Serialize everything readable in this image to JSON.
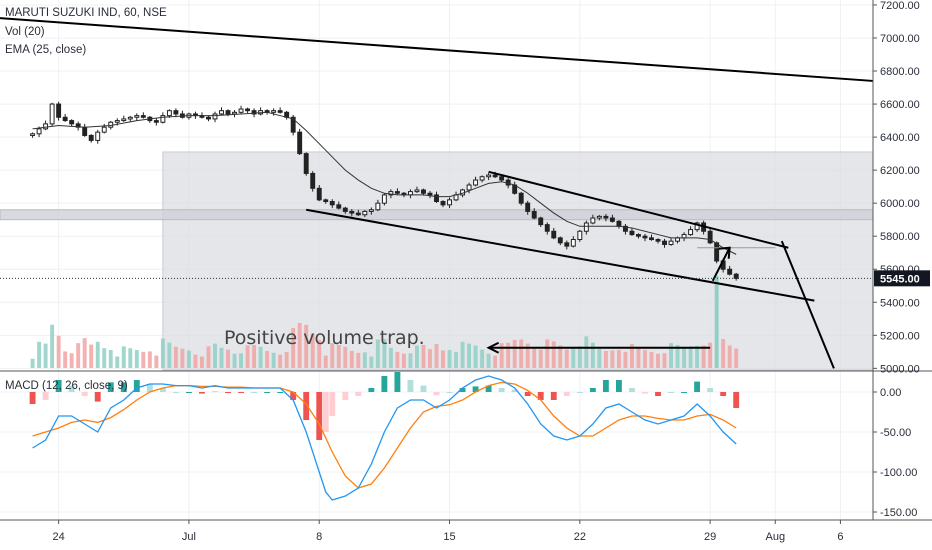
{
  "legend": {
    "symbol": "MARUTI SUZUKI IND, 60, NSE",
    "volume": "Vol (20)",
    "ema": "EMA (25, close)",
    "macd": "MACD (12, 26, close, 9)"
  },
  "annotation": {
    "text": "Positive volume trap."
  },
  "colors": {
    "up": "#26a69a",
    "down": "#ef5350",
    "vol_up": "#8fcfc4",
    "vol_down": "#f1a3a3",
    "ema": "#333333",
    "macd_line": "#2196f3",
    "signal_line": "#ff7f0e",
    "zone": "#dadbe0",
    "price_tag_bg": "#131722"
  },
  "chart_data": [
    {
      "type": "candlestick",
      "name": "price",
      "yticks": [
        5000,
        5200,
        5400,
        5600,
        5800,
        6000,
        6200,
        6400,
        6600,
        6800,
        7000,
        7200
      ],
      "ytick_labels": [
        "5000.00",
        "5200.00",
        "5400.00",
        "5600.00",
        "5800.00",
        "6000.00",
        "6200.00",
        "6400.00",
        "6600.00",
        "6800.00",
        "7000.00",
        "7200.00"
      ],
      "ylim": [
        4990,
        7230
      ],
      "last_price": 5545,
      "last_price_label": "5545.00",
      "xticks": [
        {
          "label": "24",
          "x": 2
        },
        {
          "label": "Jul",
          "x": 12
        },
        {
          "label": "8",
          "x": 22
        },
        {
          "label": "15",
          "x": 32
        },
        {
          "label": "22",
          "x": 42
        },
        {
          "label": "29",
          "x": 52
        },
        {
          "label": "Aug",
          "x": 57
        },
        {
          "label": "6",
          "x": 62
        }
      ],
      "xlim": [
        -2.5,
        64.5
      ],
      "series": [
        {
          "points": [
            [
              0,
              6420
            ],
            [
              0.5,
              6450
            ],
            [
              1,
              6480
            ],
            [
              1.5,
              6600
            ],
            [
              2,
              6520
            ],
            [
              2.5,
              6500
            ],
            [
              3,
              6480
            ],
            [
              3.5,
              6460
            ],
            [
              4,
              6410
            ],
            [
              4.5,
              6380
            ],
            [
              5,
              6430
            ],
            [
              5.5,
              6460
            ],
            [
              6,
              6490
            ],
            [
              6.5,
              6500
            ],
            [
              7,
              6510
            ],
            [
              7.5,
              6520
            ],
            [
              8,
              6530
            ],
            [
              8.5,
              6520
            ],
            [
              9,
              6500
            ],
            [
              9.5,
              6490
            ],
            [
              10,
              6530
            ],
            [
              10.5,
              6560
            ],
            [
              11,
              6540
            ],
            [
              11.5,
              6520
            ],
            [
              12,
              6540
            ],
            [
              12.5,
              6530
            ],
            [
              13,
              6520
            ],
            [
              13.5,
              6510
            ],
            [
              14,
              6540
            ],
            [
              14.5,
              6560
            ],
            [
              15,
              6540
            ],
            [
              15.5,
              6550
            ],
            [
              16,
              6570
            ],
            [
              16.5,
              6560
            ],
            [
              17,
              6540
            ],
            [
              17.5,
              6560
            ],
            [
              18,
              6550
            ],
            [
              18.5,
              6560
            ],
            [
              19,
              6550
            ],
            [
              19.5,
              6520
            ],
            [
              20,
              6430
            ],
            [
              20.5,
              6300
            ],
            [
              21,
              6180
            ],
            [
              21.5,
              6090
            ],
            [
              22,
              6020
            ],
            [
              22.5,
              6010
            ],
            [
              23,
              5990
            ],
            [
              23.5,
              5970
            ],
            [
              24,
              5950
            ],
            [
              24.5,
              5940
            ],
            [
              25,
              5930
            ],
            [
              25.5,
              5950
            ],
            [
              26,
              5960
            ],
            [
              26.5,
              6000
            ],
            [
              27,
              6050
            ],
            [
              27.5,
              6070
            ],
            [
              28,
              6060
            ],
            [
              28.5,
              6050
            ],
            [
              29,
              6070
            ],
            [
              29.5,
              6080
            ],
            [
              30,
              6060
            ],
            [
              30.5,
              6050
            ],
            [
              31,
              6010
            ],
            [
              31.5,
              5990
            ],
            [
              32,
              6020
            ],
            [
              32.5,
              6050
            ],
            [
              33,
              6080
            ],
            [
              33.5,
              6110
            ],
            [
              34,
              6140
            ],
            [
              34.5,
              6160
            ],
            [
              35,
              6170
            ],
            [
              35.5,
              6160
            ],
            [
              36,
              6140
            ],
            [
              36.5,
              6110
            ],
            [
              37,
              6060
            ],
            [
              37.5,
              6000
            ],
            [
              38,
              5950
            ],
            [
              38.5,
              5910
            ],
            [
              39,
              5870
            ],
            [
              39.5,
              5830
            ],
            [
              40,
              5790
            ],
            [
              40.5,
              5760
            ],
            [
              41,
              5740
            ],
            [
              41.5,
              5780
            ],
            [
              42,
              5830
            ],
            [
              42.5,
              5880
            ],
            [
              43,
              5910
            ],
            [
              43.5,
              5920
            ],
            [
              44,
              5910
            ],
            [
              44.5,
              5890
            ],
            [
              45,
              5860
            ],
            [
              45.5,
              5830
            ],
            [
              46,
              5810
            ],
            [
              46.5,
              5800
            ],
            [
              47,
              5790
            ],
            [
              47.5,
              5780
            ],
            [
              48,
              5770
            ],
            [
              48.5,
              5750
            ],
            [
              49,
              5770
            ],
            [
              49.5,
              5790
            ],
            [
              50,
              5810
            ],
            [
              50.5,
              5840
            ],
            [
              51,
              5880
            ],
            [
              51.5,
              5830
            ],
            [
              52,
              5760
            ],
            [
              52.5,
              5650
            ],
            [
              53,
              5600
            ],
            [
              53.5,
              5570
            ],
            [
              54,
              5545
            ]
          ]
        }
      ],
      "ema": [
        [
          0,
          6450
        ],
        [
          2,
          6470
        ],
        [
          4,
          6460
        ],
        [
          6,
          6470
        ],
        [
          8,
          6500
        ],
        [
          10,
          6520
        ],
        [
          12,
          6530
        ],
        [
          14,
          6530
        ],
        [
          16,
          6540
        ],
        [
          18,
          6550
        ],
        [
          20,
          6510
        ],
        [
          21,
          6440
        ],
        [
          22,
          6360
        ],
        [
          23,
          6280
        ],
        [
          24,
          6200
        ],
        [
          25,
          6140
        ],
        [
          26,
          6090
        ],
        [
          27,
          6060
        ],
        [
          28,
          6050
        ],
        [
          29,
          6050
        ],
        [
          30,
          6050
        ],
        [
          31,
          6040
        ],
        [
          32,
          6040
        ],
        [
          33,
          6060
        ],
        [
          34,
          6090
        ],
        [
          35,
          6120
        ],
        [
          36,
          6130
        ],
        [
          37,
          6110
        ],
        [
          38,
          6060
        ],
        [
          39,
          6000
        ],
        [
          40,
          5940
        ],
        [
          41,
          5890
        ],
        [
          42,
          5860
        ],
        [
          43,
          5860
        ],
        [
          44,
          5860
        ],
        [
          45,
          5860
        ],
        [
          46,
          5850
        ],
        [
          47,
          5830
        ],
        [
          48,
          5810
        ],
        [
          49,
          5790
        ],
        [
          50,
          5790
        ],
        [
          51,
          5790
        ],
        [
          52,
          5780
        ],
        [
          53,
          5730
        ],
        [
          54,
          5690
        ]
      ],
      "trendlines": [
        [
          [
            -2.5,
            7120
          ],
          [
            64.5,
            6740
          ]
        ],
        [
          [
            21,
            5960
          ],
          [
            60,
            5410
          ]
        ],
        [
          [
            35,
            6190
          ],
          [
            58,
            5730
          ]
        ],
        [
          [
            57.5,
            5770
          ],
          [
            61.5,
            5000
          ]
        ]
      ],
      "arrow": [
        [
          52.2,
          5530
        ],
        [
          53.5,
          5730
        ]
      ],
      "resistance_line": [
        [
          51,
          5730
        ],
        [
          57,
          5730
        ]
      ],
      "zone": {
        "x": [
          10,
          64.5
        ],
        "y": [
          4990,
          6310
        ]
      },
      "zone_band": {
        "x": [
          -2.5,
          64.5
        ],
        "y": [
          5900,
          5960
        ]
      }
    },
    {
      "type": "bar",
      "name": "volume",
      "max": 100,
      "spike": {
        "x": 52.5,
        "value": 100
      },
      "annotation_arrow": [
        [
          52,
          22
        ],
        [
          35,
          22
        ]
      ]
    },
    {
      "type": "line",
      "name": "macd",
      "yticks": [
        0,
        -50,
        -100,
        -150
      ],
      "ytick_labels": [
        "0.00",
        "-50.00",
        "-100.00",
        "-150.00"
      ],
      "ylim": [
        -160,
        25
      ],
      "macd": [
        [
          0,
          -70
        ],
        [
          1,
          -60
        ],
        [
          2,
          -30
        ],
        [
          3,
          -30
        ],
        [
          4,
          -40
        ],
        [
          5,
          -50
        ],
        [
          6,
          -20
        ],
        [
          7,
          -10
        ],
        [
          8,
          5
        ],
        [
          9,
          10
        ],
        [
          10,
          10
        ],
        [
          11,
          8
        ],
        [
          12,
          8
        ],
        [
          13,
          5
        ],
        [
          14,
          8
        ],
        [
          15,
          5
        ],
        [
          16,
          5
        ],
        [
          17,
          5
        ],
        [
          18,
          5
        ],
        [
          19,
          5
        ],
        [
          20,
          -10
        ],
        [
          21,
          -50
        ],
        [
          22,
          -100
        ],
        [
          22.5,
          -125
        ],
        [
          23,
          -135
        ],
        [
          24,
          -130
        ],
        [
          25,
          -120
        ],
        [
          26,
          -90
        ],
        [
          27,
          -50
        ],
        [
          28,
          -20
        ],
        [
          29,
          -10
        ],
        [
          30,
          -10
        ],
        [
          31,
          -20
        ],
        [
          32,
          -10
        ],
        [
          33,
          5
        ],
        [
          34,
          15
        ],
        [
          35,
          20
        ],
        [
          36,
          15
        ],
        [
          37,
          5
        ],
        [
          38,
          -15
        ],
        [
          39,
          -40
        ],
        [
          40,
          -55
        ],
        [
          41,
          -60
        ],
        [
          42,
          -55
        ],
        [
          43,
          -40
        ],
        [
          44,
          -20
        ],
        [
          45,
          -15
        ],
        [
          46,
          -25
        ],
        [
          47,
          -35
        ],
        [
          48,
          -40
        ],
        [
          49,
          -35
        ],
        [
          50,
          -30
        ],
        [
          51,
          -15
        ],
        [
          52,
          -30
        ],
        [
          53,
          -50
        ],
        [
          54,
          -65
        ]
      ],
      "signal": [
        [
          0,
          -55
        ],
        [
          1,
          -50
        ],
        [
          2,
          -45
        ],
        [
          3,
          -38
        ],
        [
          4,
          -35
        ],
        [
          5,
          -38
        ],
        [
          6,
          -32
        ],
        [
          7,
          -22
        ],
        [
          8,
          -10
        ],
        [
          9,
          0
        ],
        [
          10,
          5
        ],
        [
          11,
          8
        ],
        [
          12,
          8
        ],
        [
          13,
          7
        ],
        [
          14,
          7
        ],
        [
          15,
          6
        ],
        [
          16,
          6
        ],
        [
          17,
          5
        ],
        [
          18,
          5
        ],
        [
          19,
          5
        ],
        [
          20,
          0
        ],
        [
          21,
          -15
        ],
        [
          22,
          -40
        ],
        [
          23,
          -75
        ],
        [
          24,
          -105
        ],
        [
          25,
          -120
        ],
        [
          26,
          -115
        ],
        [
          27,
          -95
        ],
        [
          28,
          -70
        ],
        [
          29,
          -45
        ],
        [
          30,
          -25
        ],
        [
          31,
          -18
        ],
        [
          32,
          -16
        ],
        [
          33,
          -10
        ],
        [
          34,
          0
        ],
        [
          35,
          8
        ],
        [
          36,
          12
        ],
        [
          37,
          10
        ],
        [
          38,
          2
        ],
        [
          39,
          -10
        ],
        [
          40,
          -30
        ],
        [
          41,
          -45
        ],
        [
          42,
          -55
        ],
        [
          43,
          -55
        ],
        [
          44,
          -45
        ],
        [
          45,
          -35
        ],
        [
          46,
          -30
        ],
        [
          47,
          -30
        ],
        [
          48,
          -33
        ],
        [
          49,
          -35
        ],
        [
          50,
          -35
        ],
        [
          51,
          -30
        ],
        [
          52,
          -28
        ],
        [
          53,
          -35
        ],
        [
          54,
          -45
        ]
      ]
    }
  ]
}
